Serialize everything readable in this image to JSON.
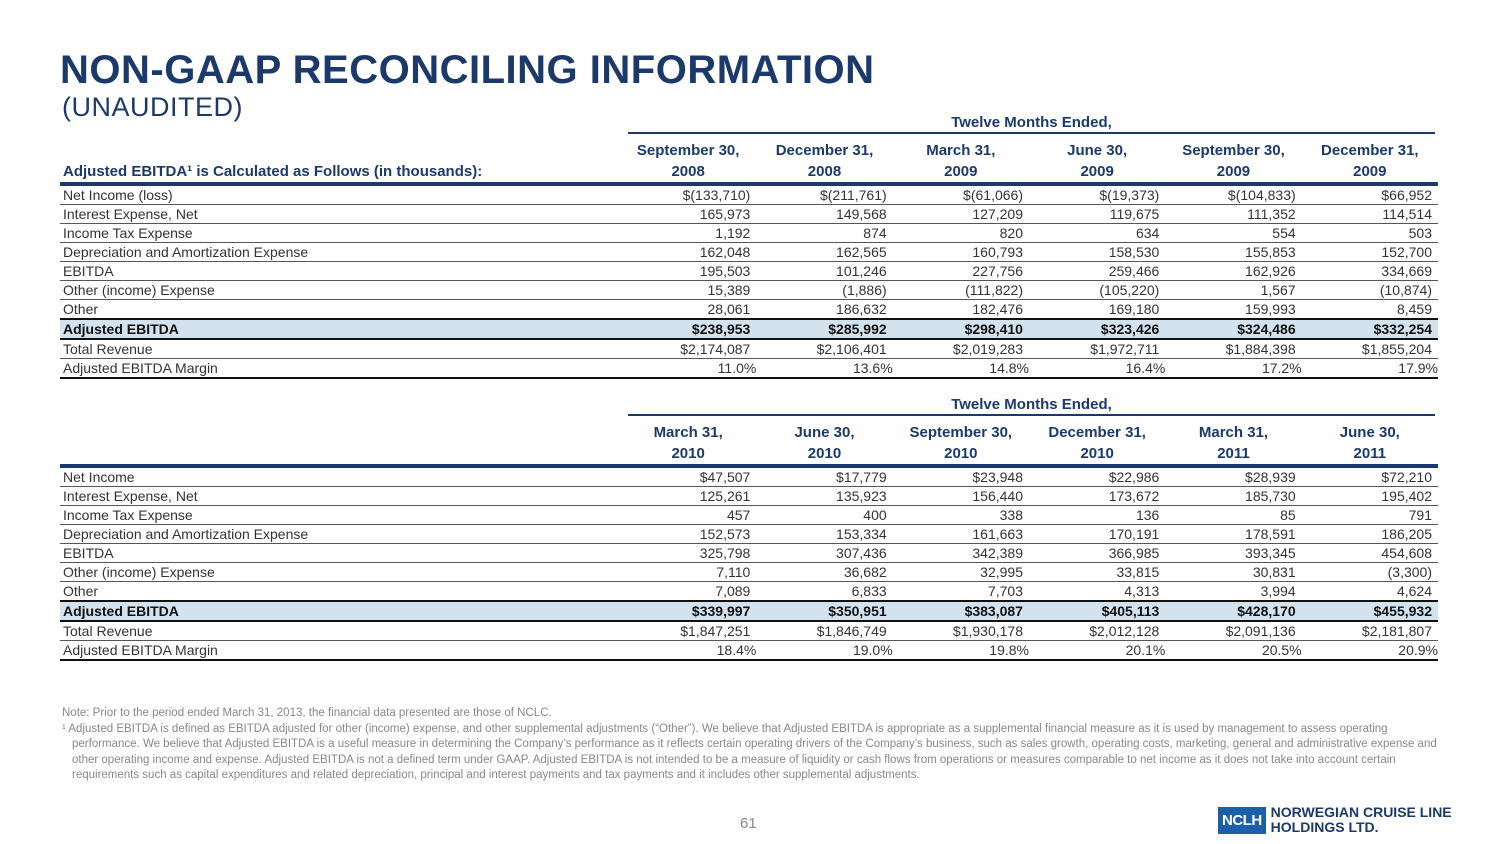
{
  "title": "NON-GAAP RECONCILING INFORMATION",
  "subtitle": "(UNAUDITED)",
  "tables": [
    {
      "group_header": "Twelve Months Ended,",
      "label_header": "Adjusted EBITDA¹ is Calculated as Follows (in thousands):",
      "columns": [
        {
          "line1": "September 30,",
          "line2": "2008"
        },
        {
          "line1": "December 31,",
          "line2": "2008"
        },
        {
          "line1": "March 31,",
          "line2": "2009"
        },
        {
          "line1": "June 30,",
          "line2": "2009"
        },
        {
          "line1": "September 30,",
          "line2": "2009"
        },
        {
          "line1": "December 31,",
          "line2": "2009"
        }
      ],
      "rows": [
        {
          "label": "Net Income (loss)",
          "values": [
            "$(133,710)",
            "$(211,761)",
            "$(61,066)",
            "$(19,373)",
            "$(104,833)",
            "$66,952"
          ]
        },
        {
          "label": "Interest Expense, Net",
          "values": [
            "165,973",
            "149,568",
            "127,209",
            "119,675",
            "111,352",
            "114,514"
          ]
        },
        {
          "label": "Income Tax Expense",
          "values": [
            "1,192",
            "874",
            "820",
            "634",
            "554",
            "503"
          ]
        },
        {
          "label": "Depreciation and Amortization Expense",
          "values": [
            "162,048",
            "162,565",
            "160,793",
            "158,530",
            "155,853",
            "152,700"
          ]
        },
        {
          "label": "EBITDA",
          "values": [
            "195,503",
            "101,246",
            "227,756",
            "259,466",
            "162,926",
            "334,669"
          ]
        },
        {
          "label": "Other (income) Expense",
          "values": [
            "15,389",
            "(1,886)",
            "(111,822)",
            "(105,220)",
            "1,567",
            "(10,874)"
          ]
        },
        {
          "label": "Other",
          "values": [
            "28,061",
            "186,632",
            "182,476",
            "169,180",
            "159,993",
            "8,459"
          ]
        },
        {
          "label": "Adjusted EBITDA",
          "bold": true,
          "values": [
            "$238,953",
            "$285,992",
            "$298,410",
            "$323,426",
            "$324,486",
            "$332,254"
          ]
        },
        {
          "label": "Total Revenue",
          "values": [
            "$2,174,087",
            "$2,106,401",
            "$2,019,283",
            "$1,972,711",
            "$1,884,398",
            "$1,855,204"
          ]
        },
        {
          "label": "Adjusted EBITDA Margin",
          "values": [
            "11.0%",
            "13.6%",
            "14.8%",
            "16.4%",
            "17.2%",
            "17.9%"
          ]
        }
      ]
    },
    {
      "group_header": "Twelve Months Ended,",
      "label_header": "",
      "columns": [
        {
          "line1": "March 31,",
          "line2": "2010"
        },
        {
          "line1": "June 30,",
          "line2": "2010"
        },
        {
          "line1": "September 30,",
          "line2": "2010"
        },
        {
          "line1": "December 31,",
          "line2": "2010"
        },
        {
          "line1": "March 31,",
          "line2": "2011"
        },
        {
          "line1": "June 30,",
          "line2": "2011"
        }
      ],
      "rows": [
        {
          "label": "Net Income",
          "values": [
            "$47,507",
            "$17,779",
            "$23,948",
            "$22,986",
            "$28,939",
            "$72,210"
          ]
        },
        {
          "label": "Interest Expense, Net",
          "values": [
            "125,261",
            "135,923",
            "156,440",
            "173,672",
            "185,730",
            "195,402"
          ]
        },
        {
          "label": "Income Tax Expense",
          "values": [
            "457",
            "400",
            "338",
            "136",
            "85",
            "791"
          ]
        },
        {
          "label": "Depreciation and Amortization Expense",
          "values": [
            "152,573",
            "153,334",
            "161,663",
            "170,191",
            "178,591",
            "186,205"
          ]
        },
        {
          "label": "EBITDA",
          "values": [
            "325,798",
            "307,436",
            "342,389",
            "366,985",
            "393,345",
            "454,608"
          ]
        },
        {
          "label": "Other (income) Expense",
          "values": [
            "7,110",
            "36,682",
            "32,995",
            "33,815",
            "30,831",
            "(3,300)"
          ]
        },
        {
          "label": "Other",
          "values": [
            "7,089",
            "6,833",
            "7,703",
            "4,313",
            "3,994",
            "4,624"
          ]
        },
        {
          "label": "Adjusted EBITDA",
          "bold": true,
          "values": [
            "$339,997",
            "$350,951",
            "$383,087",
            "$405,113",
            "$428,170",
            "$455,932"
          ]
        },
        {
          "label": "Total Revenue",
          "values": [
            "$1,847,251",
            "$1,846,749",
            "$1,930,178",
            "$2,012,128",
            "$2,091,136",
            "$2,181,807"
          ]
        },
        {
          "label": "Adjusted EBITDA Margin",
          "values": [
            "18.4%",
            "19.0%",
            "19.8%",
            "20.1%",
            "20.5%",
            "20.9%"
          ]
        }
      ]
    }
  ],
  "notes": {
    "note": "Note: Prior to the period ended March 31, 2013, the financial data presented are those of NCLC.",
    "footnote": "¹  Adjusted EBITDA is defined as EBITDA adjusted for other (income) expense, and other supplemental adjustments (“Other”). We believe that Adjusted EBITDA is appropriate as a supplemental financial measure as it is used by management to assess operating performance. We believe that Adjusted EBITDA is a useful measure in determining the Company’s performance as it reflects certain operating drivers of the Company’s business, such as sales growth, operating costs, marketing, general and administrative expense and other operating income and expense. Adjusted EBITDA is not a defined term under GAAP. Adjusted EBITDA is not intended to be a measure of liquidity or cash flows from operations or measures comparable to net income as it does not take into account certain requirements such as capital expenditures and related depreciation, principal and interest payments and tax payments and it includes other supplemental adjustments."
  },
  "page_number": "61",
  "logo": {
    "mark": "NCLH",
    "line1": "NORWEGIAN CRUISE LINE",
    "line2": "HOLDINGS LTD."
  }
}
